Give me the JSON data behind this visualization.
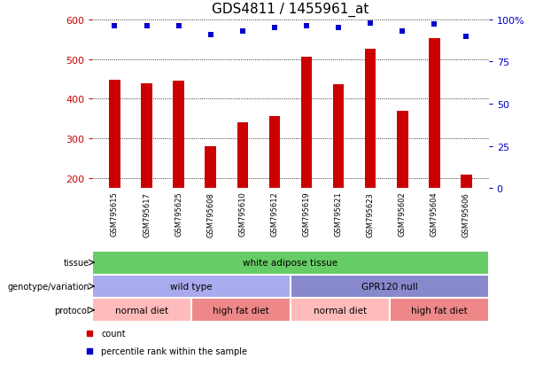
{
  "title": "GDS4811 / 1455961_at",
  "samples": [
    "GSM795615",
    "GSM795617",
    "GSM795625",
    "GSM795608",
    "GSM795610",
    "GSM795612",
    "GSM795619",
    "GSM795621",
    "GSM795623",
    "GSM795602",
    "GSM795604",
    "GSM795606"
  ],
  "counts": [
    447,
    438,
    445,
    280,
    340,
    357,
    505,
    436,
    526,
    370,
    553,
    210
  ],
  "percentile_ranks": [
    96,
    96,
    96,
    91,
    93,
    95,
    96,
    95,
    98,
    93,
    97,
    90
  ],
  "ylim_left": [
    175,
    600
  ],
  "ylim_right": [
    0,
    100
  ],
  "yticks_left": [
    200,
    300,
    400,
    500,
    600
  ],
  "yticks_right": [
    0,
    25,
    50,
    75,
    100
  ],
  "bar_color": "#cc0000",
  "dot_color": "#0000cc",
  "tissue_label": "tissue",
  "tissue_text": "white adipose tissue",
  "tissue_color": "#66cc66",
  "genotype_label": "genotype/variation",
  "genotype_groups": [
    {
      "text": "wild type",
      "color": "#aaaaee",
      "span": [
        0,
        6
      ]
    },
    {
      "text": "GPR120 null",
      "color": "#8888cc",
      "span": [
        6,
        12
      ]
    }
  ],
  "protocol_label": "protocol",
  "protocol_groups": [
    {
      "text": "normal diet",
      "color": "#ffbbbb",
      "span": [
        0,
        3
      ]
    },
    {
      "text": "high fat diet",
      "color": "#ee8888",
      "span": [
        3,
        6
      ]
    },
    {
      "text": "normal diet",
      "color": "#ffbbbb",
      "span": [
        6,
        9
      ]
    },
    {
      "text": "high fat diet",
      "color": "#ee8888",
      "span": [
        9,
        12
      ]
    }
  ],
  "legend_count_label": "count",
  "legend_pct_label": "percentile rank within the sample",
  "background_color": "#ffffff",
  "tick_area_color": "#cccccc",
  "bar_width": 0.35
}
